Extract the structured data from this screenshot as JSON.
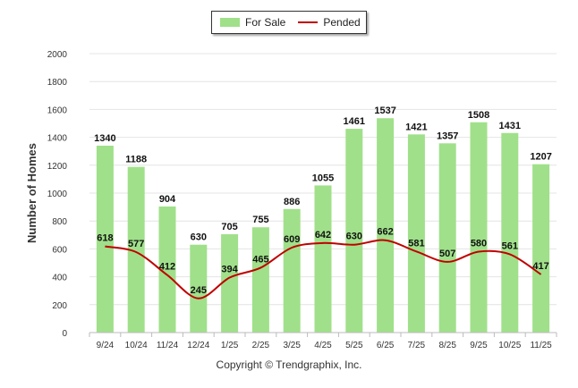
{
  "chart_data": {
    "type": "bar",
    "categories": [
      "9/24",
      "10/24",
      "11/24",
      "12/24",
      "1/25",
      "2/25",
      "3/25",
      "4/25",
      "5/25",
      "6/25",
      "7/25",
      "8/25",
      "9/25",
      "10/25",
      "11/25"
    ],
    "series": [
      {
        "name": "For Sale",
        "type": "bar",
        "color": "#a0e08a",
        "values": [
          1340,
          1188,
          904,
          630,
          705,
          755,
          886,
          1055,
          1461,
          1537,
          1421,
          1357,
          1508,
          1431,
          1207
        ]
      },
      {
        "name": "Pended",
        "type": "line",
        "color": "#c00000",
        "values": [
          618,
          577,
          412,
          245,
          394,
          465,
          609,
          642,
          630,
          662,
          581,
          507,
          580,
          561,
          417
        ]
      }
    ],
    "title": "",
    "xlabel": "",
    "ylabel": "Number of Homes",
    "ylim": [
      0,
      2000
    ],
    "yticks": [
      0,
      200,
      400,
      600,
      800,
      1000,
      1200,
      1400,
      1600,
      1800,
      2000
    ],
    "legend_position": "top-center",
    "grid": true
  },
  "footer": {
    "copyright": "Copyright © Trendgraphix, Inc."
  }
}
